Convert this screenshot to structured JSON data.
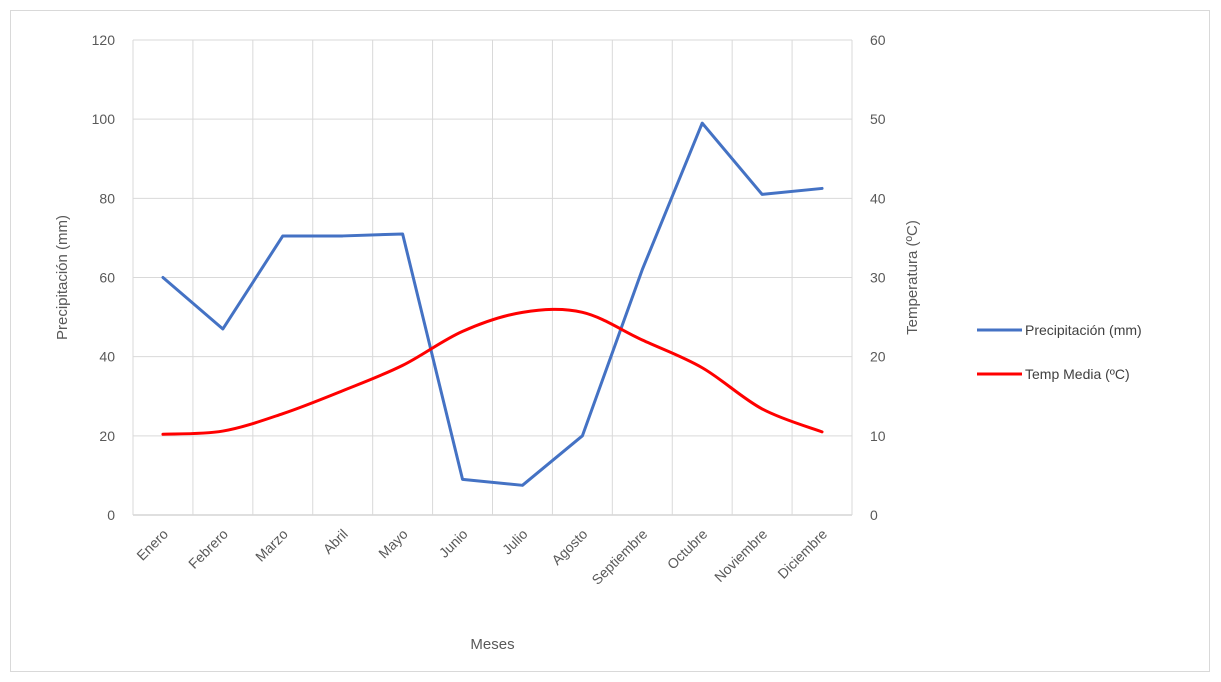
{
  "chart_data": {
    "type": "line",
    "title": "",
    "categories": [
      "Enero",
      "Febrero",
      "Marzo",
      "Abril",
      "Mayo",
      "Junio",
      "Julio",
      "Agosto",
      "Septiembre",
      "Octubre",
      "Noviembre",
      "Diciembre"
    ],
    "xlabel": "Meses",
    "ylabel": "Precipitación  (mm)",
    "y2label": "Temperatura (ºC)",
    "ylim": [
      0,
      120
    ],
    "y2lim": [
      0,
      60
    ],
    "yticks": [
      0,
      20,
      40,
      60,
      80,
      100,
      120
    ],
    "y2ticks": [
      0,
      10,
      20,
      30,
      40,
      50,
      60
    ],
    "grid": true,
    "legend_position": "right",
    "series": [
      {
        "name": "Precipitación (mm)",
        "axis": "left",
        "color": "#4472c4",
        "smooth": false,
        "values": [
          60,
          47,
          70.5,
          70.5,
          71,
          9,
          7.5,
          20,
          62,
          99,
          81,
          82.5
        ]
      },
      {
        "name": "Temp  Media (ºC)",
        "axis": "right",
        "color": "#ff0000",
        "smooth": true,
        "values": [
          10.2,
          10.6,
          12.8,
          15.7,
          18.9,
          23.2,
          25.6,
          25.6,
          22.1,
          18.6,
          13.4,
          10.5
        ]
      }
    ]
  }
}
